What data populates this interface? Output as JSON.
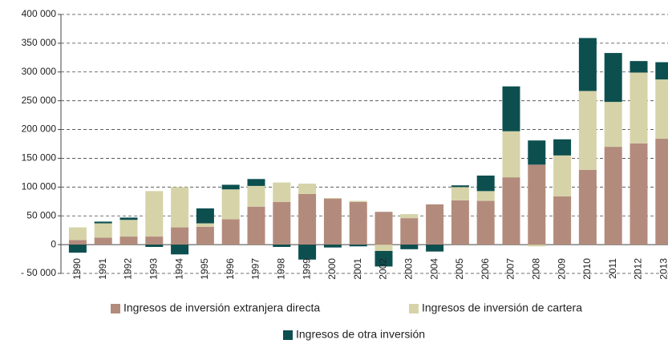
{
  "chart_data": {
    "type": "stacked_bar",
    "categories": [
      "1990",
      "1991",
      "1992",
      "1993",
      "1994",
      "1995",
      "1996",
      "1997",
      "1998",
      "1999",
      "2000",
      "2001",
      "2002",
      "2003",
      "2004",
      "2005",
      "2006",
      "2007",
      "2008",
      "2009",
      "2010",
      "2011",
      "2012",
      "2013"
    ],
    "series": [
      {
        "name": "Ingresos de inversión extranjera directa",
        "color": "#b38b7c",
        "values": [
          8000,
          12000,
          14000,
          14000,
          30000,
          31000,
          44000,
          66000,
          74000,
          88000,
          80000,
          74000,
          57000,
          46000,
          70000,
          77000,
          76000,
          117000,
          139000,
          84000,
          130000,
          170000,
          176000,
          184000
        ]
      },
      {
        "name": "Ingresos de inversión de cartera",
        "color": "#d6d3a9",
        "values": [
          22000,
          25000,
          29000,
          79000,
          70000,
          6000,
          52000,
          36000,
          34000,
          18000,
          1000,
          2000,
          -11000,
          7000,
          0,
          23000,
          17000,
          80000,
          -3000,
          71000,
          137000,
          78000,
          123000,
          103000
        ]
      },
      {
        "name": "Ingresos de otra inversión",
        "color": "#0d4f4f",
        "values": [
          -14000,
          3000,
          4000,
          -4000,
          -17000,
          26000,
          8000,
          12000,
          -4000,
          -26000,
          -5000,
          -3000,
          -27000,
          -8000,
          -12000,
          3000,
          27000,
          78000,
          42000,
          28000,
          92000,
          85000,
          20000,
          30000
        ]
      }
    ],
    "ylim": [
      -50000,
      400000
    ],
    "yticks": [
      {
        "value": -50000,
        "label": "- 50 000"
      },
      0,
      {
        "value": 50000,
        "label": "50 000"
      },
      {
        "value": 100000,
        "label": "100 000"
      },
      {
        "value": 150000,
        "label": "150 000"
      },
      {
        "value": 200000,
        "label": "200 000"
      },
      {
        "value": 250000,
        "label": "250 000"
      },
      {
        "value": 300000,
        "label": "300 000"
      },
      {
        "value": 350000,
        "label": "350 000"
      },
      {
        "value": 400000,
        "label": "400 000"
      }
    ],
    "grid": true
  }
}
